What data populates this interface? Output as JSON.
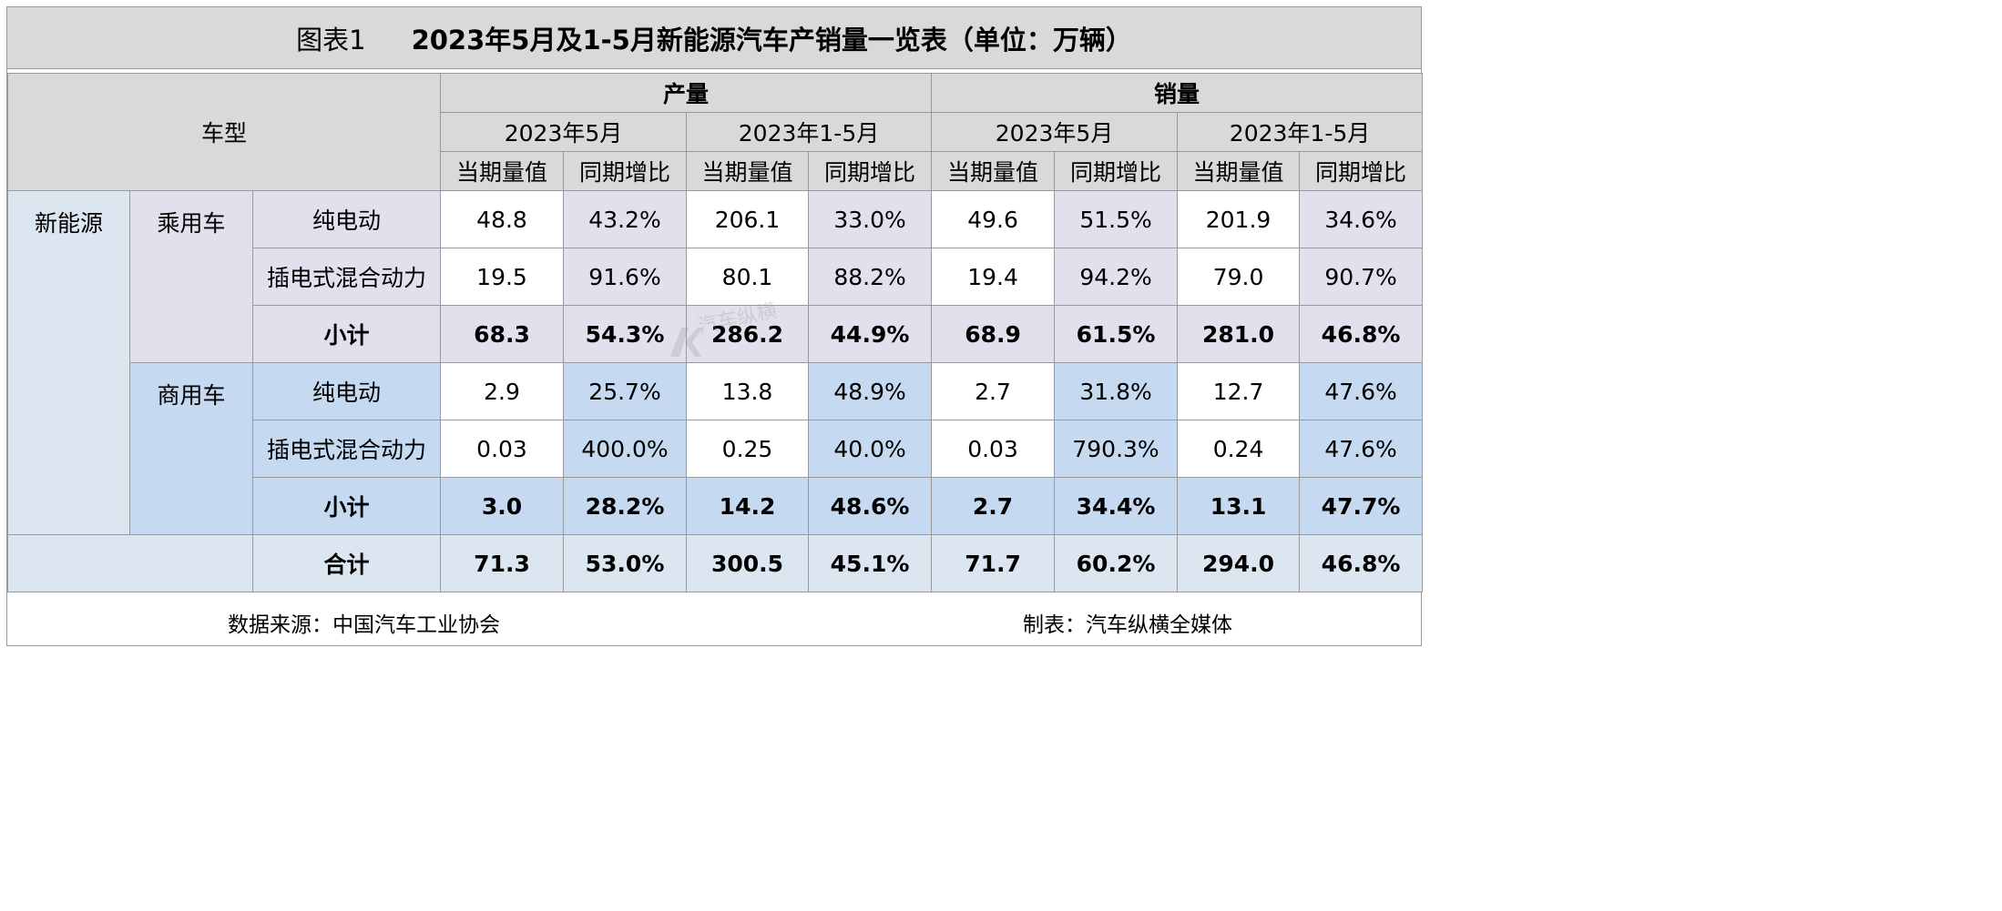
{
  "title": {
    "number": "图表1",
    "text": "2023年5月及1-5月新能源汽车产销量一览表（单位：万辆）"
  },
  "header": {
    "vehicle_type": "车型",
    "groups": [
      "产量",
      "销量"
    ],
    "periods": [
      "2023年5月",
      "2023年1-5月",
      "2023年5月",
      "2023年1-5月"
    ],
    "metrics": [
      "当期量值",
      "同期增比",
      "当期量值",
      "同期增比",
      "当期量值",
      "同期增比",
      "当期量值",
      "同期增比"
    ]
  },
  "labels": {
    "category": "新能源",
    "passenger": "乘用车",
    "commercial": "商用车",
    "bev": "纯电动",
    "phev": "插电式混合动力",
    "subtotal": "小计",
    "total": "合计"
  },
  "chart_data": {
    "type": "table",
    "title": "2023年5月及1-5月新能源汽车产销量一览表（单位：万辆）",
    "columns": [
      "产量 2023年5月 当期量值",
      "产量 2023年5月 同期增比",
      "产量 2023年1-5月 当期量值",
      "产量 2023年1-5月 同期增比",
      "销量 2023年5月 当期量值",
      "销量 2023年5月 同期增比",
      "销量 2023年1-5月 当期量值",
      "销量 2023年1-5月 同期增比"
    ],
    "rows": {
      "passenger_bev": [
        "48.8",
        "43.2%",
        "206.1",
        "33.0%",
        "49.6",
        "51.5%",
        "201.9",
        "34.6%"
      ],
      "passenger_phev": [
        "19.5",
        "91.6%",
        "80.1",
        "88.2%",
        "19.4",
        "94.2%",
        "79.0",
        "90.7%"
      ],
      "passenger_subtotal": [
        "68.3",
        "54.3%",
        "286.2",
        "44.9%",
        "68.9",
        "61.5%",
        "281.0",
        "46.8%"
      ],
      "commercial_bev": [
        "2.9",
        "25.7%",
        "13.8",
        "48.9%",
        "2.7",
        "31.8%",
        "12.7",
        "47.6%"
      ],
      "commercial_phev": [
        "0.03",
        "400.0%",
        "0.25",
        "40.0%",
        "0.03",
        "790.3%",
        "0.24",
        "47.6%"
      ],
      "commercial_subtotal": [
        "3.0",
        "28.2%",
        "14.2",
        "48.6%",
        "2.7",
        "34.4%",
        "13.1",
        "47.7%"
      ],
      "total": [
        "71.3",
        "53.0%",
        "300.5",
        "45.1%",
        "71.7",
        "60.2%",
        "294.0",
        "46.8%"
      ]
    }
  },
  "footer": {
    "source": "数据来源：中国汽车工业协会",
    "maker": "制表：汽车纵横全媒体"
  },
  "watermark": {
    "text": "汽车纵横"
  }
}
